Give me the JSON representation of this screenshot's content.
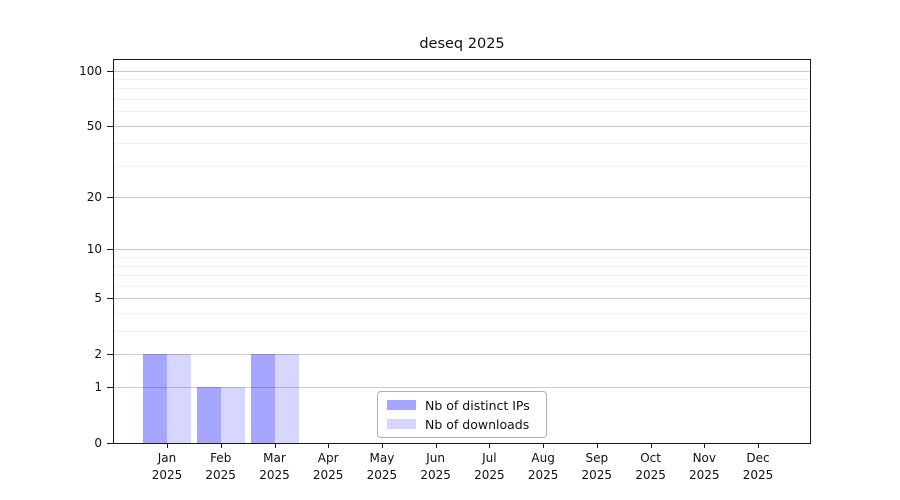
{
  "chart_data": {
    "type": "bar",
    "title": "deseq 2025",
    "categories": [
      "Jan",
      "Feb",
      "Mar",
      "Apr",
      "May",
      "Jun",
      "Jul",
      "Aug",
      "Sep",
      "Oct",
      "Nov",
      "Dec"
    ],
    "year_label": "2025",
    "series": [
      {
        "name": "Nb of distinct IPs",
        "fill": "#0000ff",
        "fill_opacity": 0.35,
        "values": [
          2,
          1,
          2,
          0,
          0,
          0,
          0,
          0,
          0,
          0,
          0,
          0
        ]
      },
      {
        "name": "Nb of downloads",
        "fill": "#0000ff",
        "fill_opacity": 0.16,
        "values": [
          2,
          1,
          2,
          0,
          0,
          0,
          0,
          0,
          0,
          0,
          0,
          0
        ]
      }
    ],
    "yscale": "log1p",
    "ylim": [
      0,
      114
    ],
    "yticks": [
      0,
      1,
      2,
      5,
      10,
      20,
      50,
      100
    ],
    "yticks_minor": [
      3,
      4,
      6,
      7,
      8,
      9,
      30,
      40,
      60,
      70,
      80,
      90
    ],
    "xlabel": "",
    "ylabel": "",
    "grid": "horizontal",
    "legend_position": "bottom-center",
    "colors": {
      "axis": "#1a1a1a",
      "grid_major": "#cccccc",
      "grid_minor": "#f0f0f0",
      "legend_border": "#b0b0b0",
      "background": "#ffffff"
    }
  }
}
